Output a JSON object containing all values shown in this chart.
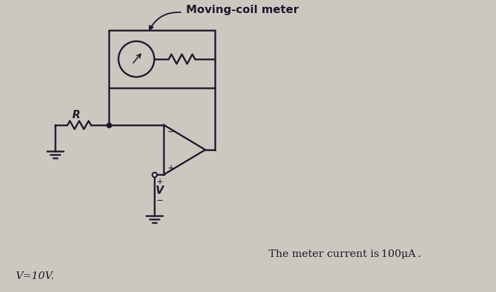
{
  "bg_color": "#cdc8bf",
  "line_color": "#1a1a2e",
  "title_text": "Moving-coil meter",
  "label_R": "R",
  "label_V": "V",
  "label_minus": "−",
  "label_plus": "+",
  "text_meter_current": "The meter current is 100μA .",
  "text_voltage": "V=10V.",
  "fig_width": 7.2,
  "fig_height": 4.25,
  "dpi": 100
}
